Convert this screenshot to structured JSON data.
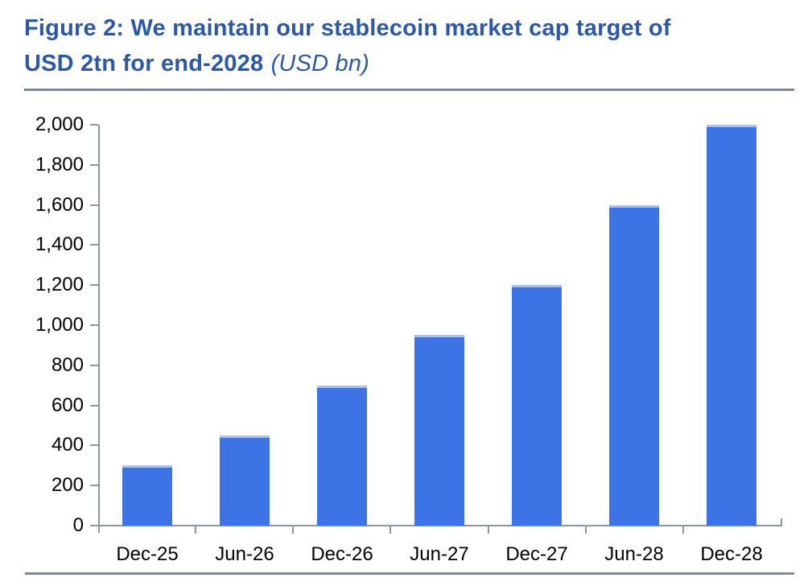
{
  "header": {
    "title_line1": "Figure 2: We maintain our stablecoin market cap target of",
    "title_line2_bold": "USD 2tn for end-2028",
    "title_line2_unit": "(USD bn)"
  },
  "chart_data": {
    "type": "bar",
    "title": "Figure 2: We maintain our stablecoin market cap target of USD 2tn for end-2028",
    "unit_note": "(USD bn)",
    "categories": [
      "Dec-25",
      "Jun-26",
      "Dec-26",
      "Jun-27",
      "Dec-27",
      "Jun-28",
      "Dec-28"
    ],
    "values": [
      300,
      450,
      700,
      950,
      1200,
      1600,
      2000
    ],
    "xlabel": "",
    "ylabel": "",
    "ylim": [
      0,
      2000
    ],
    "ytick_step": 200,
    "grid": false,
    "legend": "none",
    "colors": {
      "bar": "#3C74E6",
      "bar_top_edge": "#A9C2EF",
      "axis": "#8F969E",
      "title": "#2B58A8",
      "divider": "#81888F",
      "label": "#000000"
    }
  }
}
